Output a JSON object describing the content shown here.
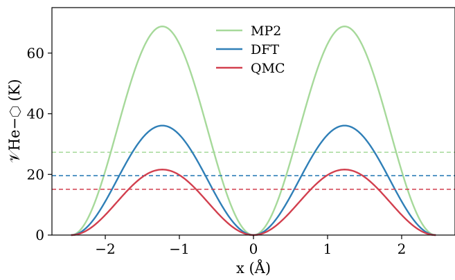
{
  "chart_data": {
    "type": "line",
    "xlabel": "x (Å)",
    "ylabel": "𝒱He−⬡ (K)",
    "xlim": [
      -2.72,
      2.72
    ],
    "ylim": [
      0,
      75
    ],
    "xticks": [
      -2,
      -1,
      0,
      1,
      2
    ],
    "xtick_labels": [
      "−2",
      "−1",
      "0",
      "1",
      "2"
    ],
    "yticks": [
      0,
      20,
      40,
      60
    ],
    "ytick_labels": [
      "0",
      "20",
      "40",
      "60"
    ],
    "grid": false,
    "legend_position": "top-center",
    "x_extent": [
      -2.46,
      2.46
    ],
    "series": [
      {
        "name": "MP2",
        "color": "#a6d99a",
        "peak": 68.8,
        "mean_line": 27.3
      },
      {
        "name": "DFT",
        "color": "#2f7fb7",
        "peak": 36.1,
        "mean_line": 19.6
      },
      {
        "name": "QMC",
        "color": "#d23f4e",
        "peak": 21.6,
        "mean_line": 15.1
      }
    ]
  }
}
